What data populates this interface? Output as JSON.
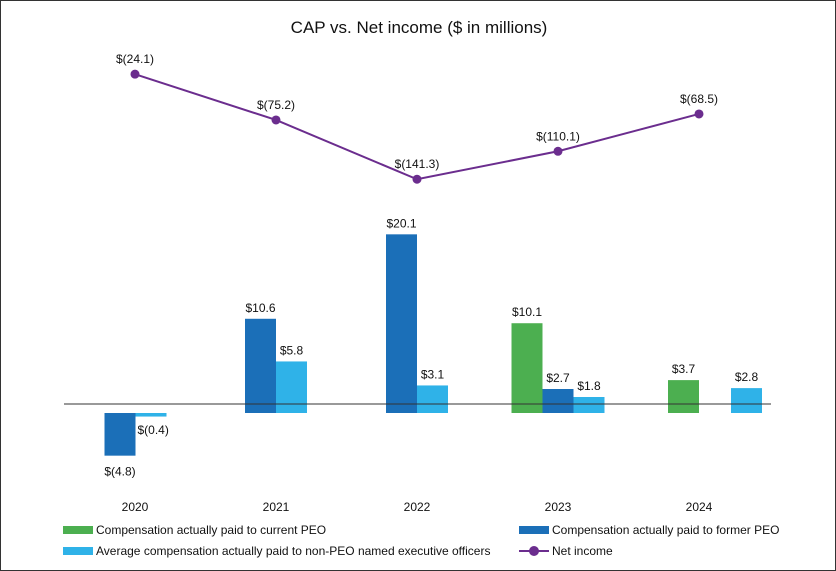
{
  "chart_data": {
    "type": "bar",
    "title": "CAP vs. Net income ($ in millions)",
    "categories": [
      "2020",
      "2021",
      "2022",
      "2023",
      "2024"
    ],
    "series": [
      {
        "name": "Compensation actually paid to current PEO",
        "kind": "bar",
        "color": "#4caf50",
        "values": [
          null,
          null,
          null,
          10.1,
          3.7
        ],
        "labels": [
          null,
          null,
          null,
          "$10.1",
          "$3.7"
        ]
      },
      {
        "name": "Compensation actually paid to former PEO",
        "kind": "bar",
        "color": "#1b6fb8",
        "values": [
          -4.8,
          10.6,
          20.1,
          2.7,
          null
        ],
        "labels": [
          "$(4.8)",
          "$10.6",
          "$20.1",
          "$2.7",
          null
        ]
      },
      {
        "name": "Average compensation actually paid to non-PEO named executive officers",
        "kind": "bar",
        "color": "#2fb2e8",
        "values": [
          -0.4,
          5.8,
          3.1,
          1.8,
          2.8
        ],
        "labels": [
          "$(0.4)",
          "$5.8",
          "$3.1",
          "$1.8",
          "$2.8"
        ]
      },
      {
        "name": "Net income",
        "kind": "line",
        "color": "#6b2d8e",
        "values": [
          -24.1,
          -75.2,
          -141.3,
          -110.1,
          -68.5
        ],
        "labels": [
          "$(24.1)",
          "$(75.2)",
          "$(141.3)",
          "$(110.1)",
          "$(68.5)"
        ]
      }
    ],
    "bar_ylim": [
      -5.4,
      21.6
    ],
    "line_ylim": [
      -160,
      -15
    ],
    "legend_position": "bottom"
  }
}
